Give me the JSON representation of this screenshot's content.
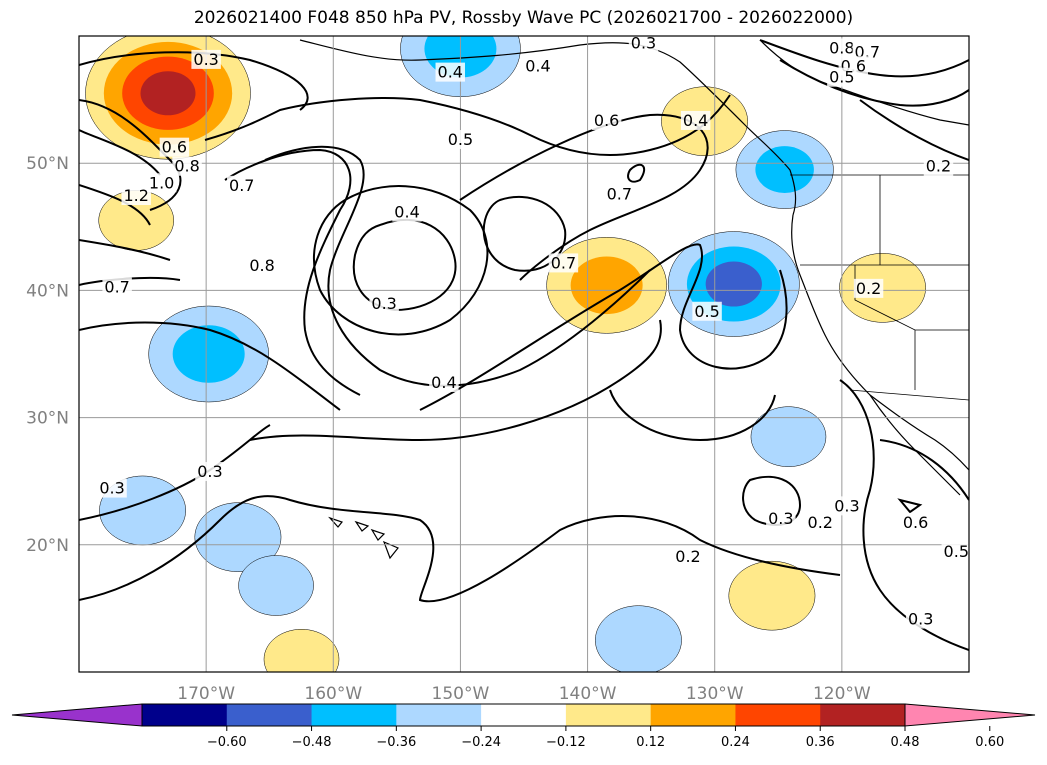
{
  "title": "2026021400 F048 850 hPa PV, Rossby Wave PC (2026021700 - 2026022000)",
  "map": {
    "projection": "PlateCarree",
    "lon_range": [
      -180,
      -110
    ],
    "lat_range": [
      10,
      60
    ],
    "grid": true,
    "lat_ticks": [
      {
        "value": 20,
        "label": "20°N"
      },
      {
        "value": 30,
        "label": "30°N"
      },
      {
        "value": 40,
        "label": "40°N"
      },
      {
        "value": 50,
        "label": "50°N"
      }
    ],
    "lon_ticks": [
      {
        "value": -170,
        "label": "170°W"
      },
      {
        "value": -160,
        "label": "160°W"
      },
      {
        "value": -150,
        "label": "150°W"
      },
      {
        "value": -140,
        "label": "140°W"
      },
      {
        "value": -130,
        "label": "130°W"
      },
      {
        "value": -120,
        "label": "120°W"
      }
    ]
  },
  "colorbar": {
    "extend": "both",
    "levels": [
      -0.72,
      -0.6,
      -0.48,
      -0.36,
      -0.24,
      -0.12,
      0.12,
      0.24,
      0.36,
      0.48,
      0.6,
      0.72
    ],
    "colors": [
      "#9932cc",
      "#00008b",
      "#3a5fcd",
      "#00bfff",
      "#add8ff",
      "#ffffff",
      "#ffe98a",
      "#ffa500",
      "#ff4500",
      "#b22222",
      "#ff85b0"
    ],
    "tick_labels": [
      "−0.60",
      "−0.48",
      "−0.36",
      "−0.24",
      "−0.12",
      "0.12",
      "0.24",
      "0.36",
      "0.48",
      "0.60"
    ]
  },
  "shaded_anomalies": [
    {
      "lon": -173,
      "lat": 55.5,
      "value": 0.6
    },
    {
      "lon": -150,
      "lat": 59,
      "value": -0.4
    },
    {
      "lon": -138.5,
      "lat": 40.4,
      "value": 0.4
    },
    {
      "lon": -128.5,
      "lat": 40.5,
      "value": -0.45
    },
    {
      "lon": -124.5,
      "lat": 49.5,
      "value": -0.3
    },
    {
      "lon": -130.8,
      "lat": 53.3,
      "value": 0.25
    },
    {
      "lon": -169.8,
      "lat": 35,
      "value": -0.4
    },
    {
      "lon": -175,
      "lat": 22.7,
      "value": -0.25
    },
    {
      "lon": -167.5,
      "lat": 20.6,
      "value": -0.25
    },
    {
      "lon": -175.5,
      "lat": 45.5,
      "value": 0.2
    },
    {
      "lon": -116.8,
      "lat": 40.2,
      "value": 0.25
    },
    {
      "lon": -124.2,
      "lat": 28.5,
      "value": -0.2
    },
    {
      "lon": -136,
      "lat": 12.5,
      "value": -0.25
    },
    {
      "lon": -125.5,
      "lat": 16,
      "value": 0.25
    },
    {
      "lon": -164.5,
      "lat": 16.8,
      "value": -0.2
    },
    {
      "lon": -162.5,
      "lat": 11,
      "value": 0.2
    }
  ],
  "contour_labels": [
    {
      "lon": -170,
      "lat": 58.2,
      "text": "0.3"
    },
    {
      "lon": -171.5,
      "lat": 49.8,
      "text": "0.8"
    },
    {
      "lon": -172.5,
      "lat": 51.3,
      "text": "0.6"
    },
    {
      "lon": -175.5,
      "lat": 47.5,
      "text": "1.2"
    },
    {
      "lon": -173.5,
      "lat": 48.5,
      "text": "1.0"
    },
    {
      "lon": -167.2,
      "lat": 48.3,
      "text": "0.7"
    },
    {
      "lon": -177,
      "lat": 40.3,
      "text": "0.7"
    },
    {
      "lon": -165.6,
      "lat": 42,
      "text": "0.8"
    },
    {
      "lon": -156,
      "lat": 39,
      "text": "0.3"
    },
    {
      "lon": -154.2,
      "lat": 46.2,
      "text": "0.4"
    },
    {
      "lon": -150,
      "lat": 51.9,
      "text": "0.5"
    },
    {
      "lon": -151.3,
      "lat": 32.8,
      "text": "0.4"
    },
    {
      "lon": -150.8,
      "lat": 57.2,
      "text": "0.4"
    },
    {
      "lon": -143.9,
      "lat": 57.7,
      "text": "0.4"
    },
    {
      "lon": -141.9,
      "lat": 42.2,
      "text": "0.7"
    },
    {
      "lon": -137.5,
      "lat": 47.6,
      "text": "0.7"
    },
    {
      "lon": -138.5,
      "lat": 53.4,
      "text": "0.6"
    },
    {
      "lon": -131.5,
      "lat": 53.4,
      "text": "0.4"
    },
    {
      "lon": -135.6,
      "lat": 59.5,
      "text": "0.3"
    },
    {
      "lon": -130.6,
      "lat": 38.4,
      "text": "0.5"
    },
    {
      "lon": -169.7,
      "lat": 25.8,
      "text": "0.3"
    },
    {
      "lon": -177.4,
      "lat": 24.5,
      "text": "0.3"
    },
    {
      "lon": -124.8,
      "lat": 22.1,
      "text": "0.3"
    },
    {
      "lon": -121.7,
      "lat": 21.8,
      "text": "0.2"
    },
    {
      "lon": -132.1,
      "lat": 19.1,
      "text": "0.2"
    },
    {
      "lon": -119.6,
      "lat": 23.1,
      "text": "0.3"
    },
    {
      "lon": -114.2,
      "lat": 21.8,
      "text": "0.6"
    },
    {
      "lon": -111,
      "lat": 19.5,
      "text": "0.5"
    },
    {
      "lon": -113.8,
      "lat": 14.2,
      "text": "0.3"
    },
    {
      "lon": -112.4,
      "lat": 49.8,
      "text": "0.2"
    },
    {
      "lon": -117.9,
      "lat": 40.2,
      "text": "0.2"
    },
    {
      "lon": -120,
      "lat": 59.1,
      "text": "0.8"
    },
    {
      "lon": -118,
      "lat": 58.8,
      "text": "0.7"
    },
    {
      "lon": -119.1,
      "lat": 57.7,
      "text": "0.6"
    },
    {
      "lon": -120,
      "lat": 56.8,
      "text": "0.5"
    }
  ]
}
